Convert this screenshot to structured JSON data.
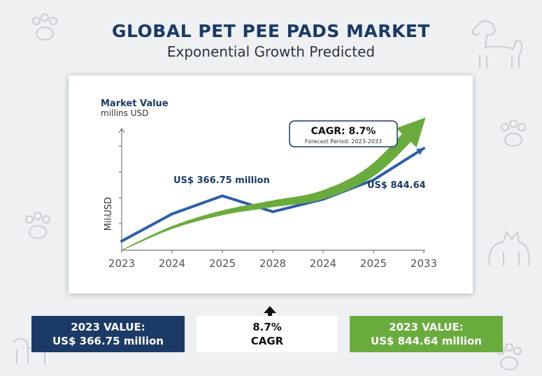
{
  "header": {
    "title": "GLOBAL PET PEE PADS MARKET",
    "subtitle": "Exponential Growth Predicted"
  },
  "chart_data": {
    "type": "line",
    "title": "Market Value",
    "subtitle": "millins USD",
    "ylabel": "MilₗUSD",
    "categories": [
      "2023",
      "2024",
      "2025",
      "2028",
      "2024",
      "2025",
      "2033"
    ],
    "series": [
      {
        "name": "",
        "color": "#2e5fa6",
        "values": [
          0.4,
          1.6,
          2.4,
          1.7,
          2.25,
          3.1,
          4.5
        ]
      },
      {
        "name": "",
        "color": "#6aab3e",
        "values": [
          0.0,
          1.0,
          1.65,
          2.05,
          2.45,
          3.55,
          5.8
        ]
      }
    ],
    "ylim": [
      0,
      5
    ],
    "grid": false,
    "annotations": {
      "start_value": "US$ 366.75 million",
      "end_value": "US$ 844.64",
      "cagr_label": "CAGR: 8.7%",
      "forecast_period": "Forecast Period: 2023-2033"
    },
    "colors": {
      "line": "#2e5fa6",
      "growth": "#6aab3e",
      "navy": "#1b3a66"
    }
  },
  "summary": {
    "left_line1": "2023 VALUE:",
    "left_line2": "US$ 366.75 million",
    "mid_line1": "8.7%",
    "mid_line2": "CAGR",
    "right_line1": "2023 VALUE:",
    "right_line2": "US$ 844.64 million"
  }
}
